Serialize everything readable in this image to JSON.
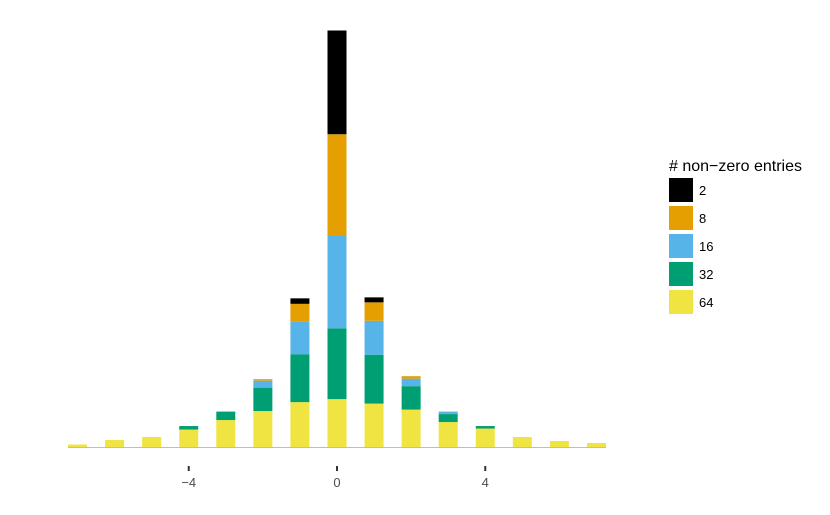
{
  "chart_data": {
    "type": "bar",
    "stacked": true,
    "title": "",
    "xlabel": "",
    "ylabel": "",
    "x": [
      -7,
      -6,
      -5,
      -4,
      -3,
      -2,
      -1,
      0,
      1,
      2,
      3,
      4,
      5,
      6,
      7
    ],
    "x_ticks": [
      {
        "value": -4,
        "label": "−4"
      },
      {
        "value": 0,
        "label": "0"
      },
      {
        "value": 4,
        "label": "4"
      }
    ],
    "xlim": [
      -7.5,
      7.5
    ],
    "ylim": [
      0,
      420
    ],
    "grid": false,
    "legend": {
      "title": "# non−zero entries",
      "position": "right"
    },
    "series": [
      {
        "name": "64",
        "color": "#F0E442",
        "values": [
          2.5,
          7,
          10,
          17.5,
          27,
          36,
          45,
          48,
          43.5,
          37.5,
          25,
          18.5,
          10,
          6,
          4
        ]
      },
      {
        "name": "32",
        "color": "#009E73",
        "values": [
          0,
          0,
          0,
          3.5,
          8.5,
          23.5,
          48,
          71,
          49,
          23.5,
          8,
          2.5,
          0,
          0,
          0
        ]
      },
      {
        "name": "16",
        "color": "#56B4E9",
        "values": [
          0,
          0,
          0,
          0,
          0,
          7,
          33,
          93,
          34,
          7.5,
          2.5,
          0,
          0,
          0,
          0
        ]
      },
      {
        "name": "8",
        "color": "#E69F00",
        "values": [
          0,
          0,
          0,
          0,
          0,
          1.5,
          17.5,
          101.5,
          18.5,
          2.5,
          0,
          0,
          0,
          0,
          0
        ]
      },
      {
        "name": "2",
        "color": "#000000",
        "values": [
          0,
          0,
          0,
          0,
          0,
          0,
          5.5,
          104,
          5,
          0,
          0,
          0,
          0,
          0,
          0
        ]
      }
    ],
    "legend_order": [
      "2",
      "8",
      "16",
      "32",
      "64"
    ]
  }
}
